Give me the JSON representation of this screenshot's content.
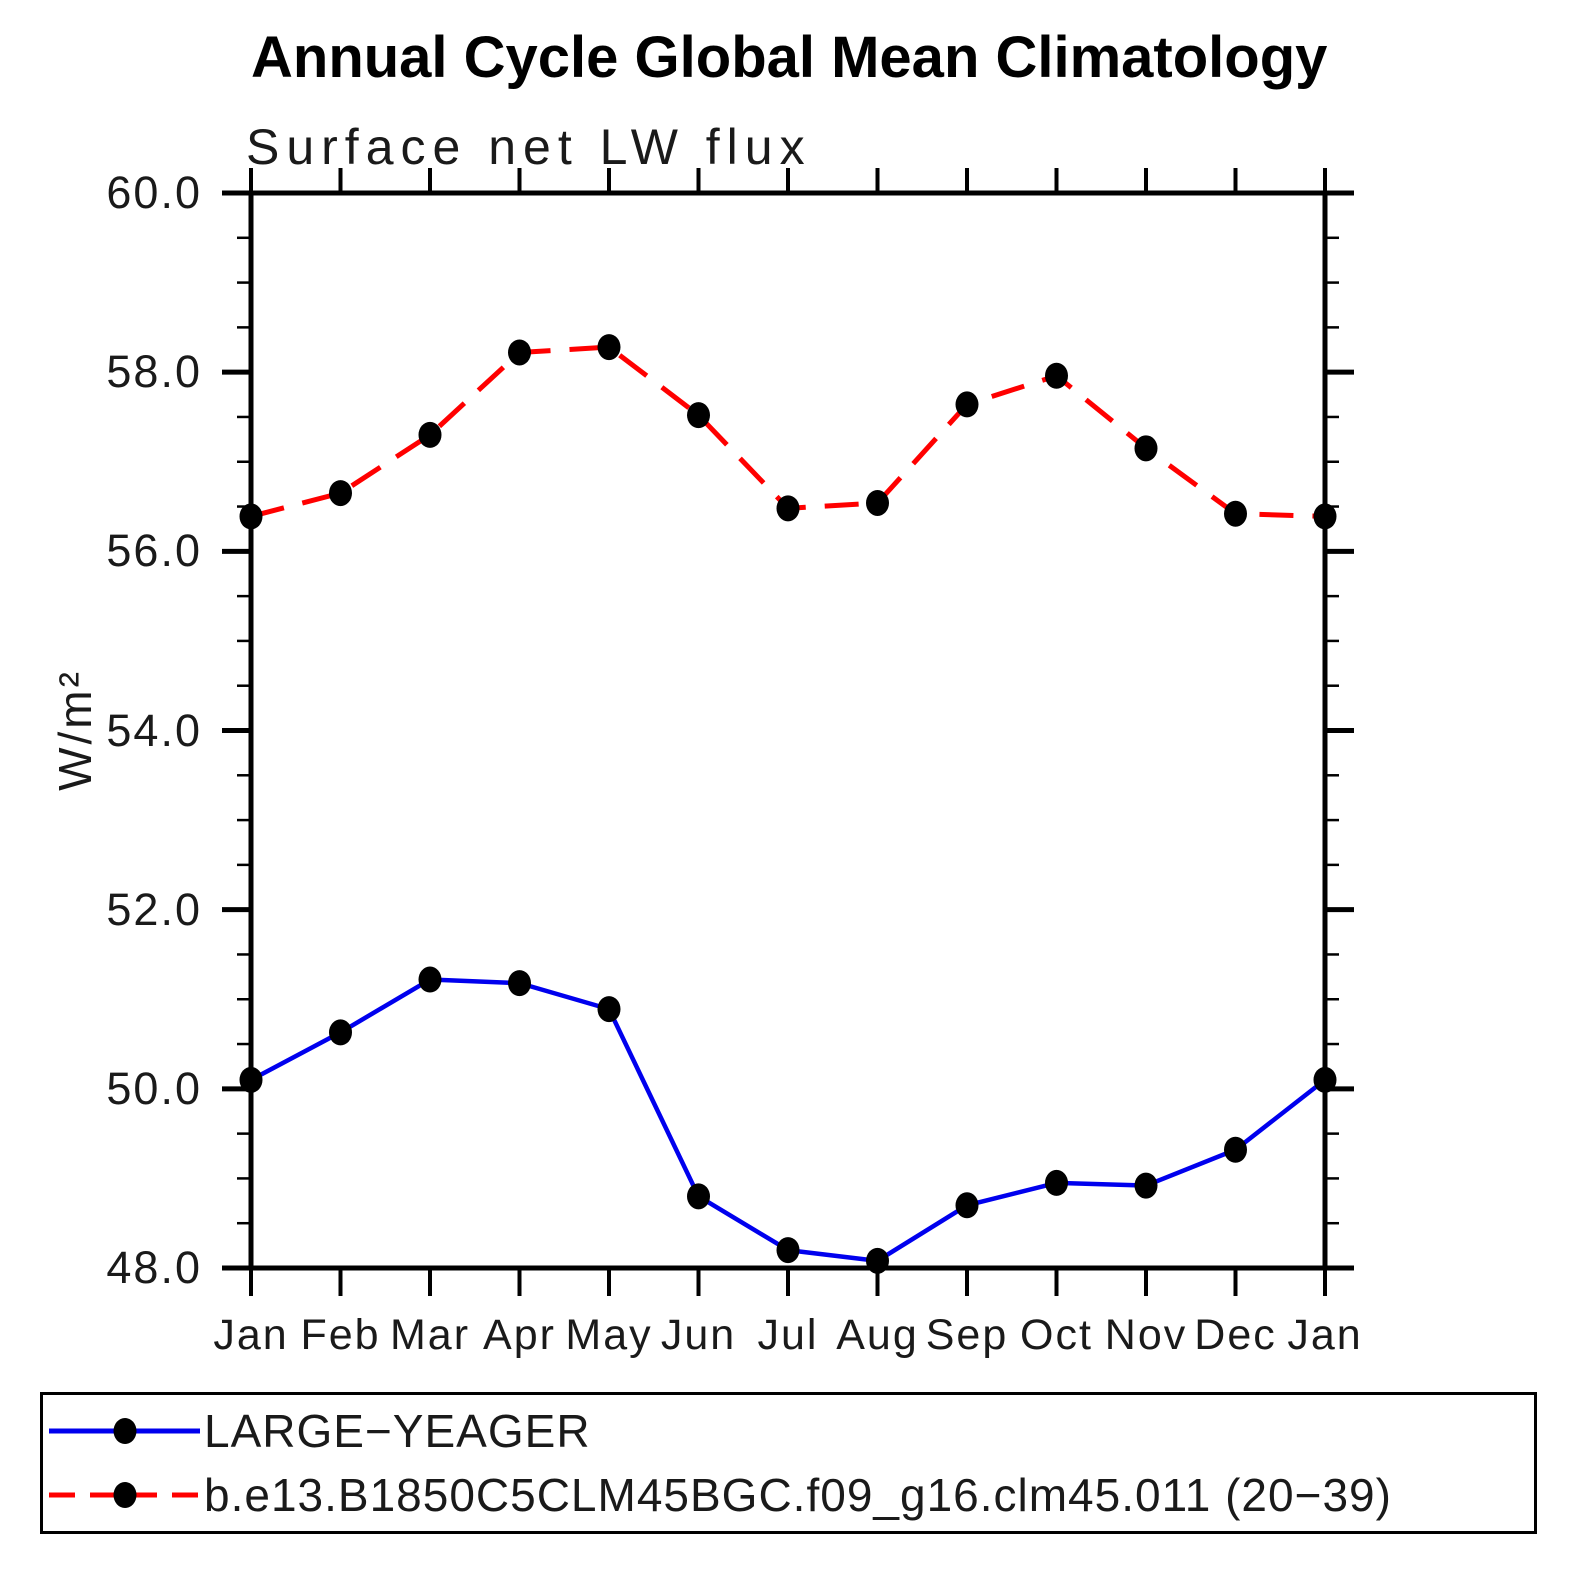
{
  "header": {
    "title": "Annual Cycle Global Mean Climatology"
  },
  "chart_data": {
    "type": "line",
    "title": "Annual Cycle Global Mean Climatology",
    "subtitle": "Surface net LW flux",
    "ylabel": "W/m²",
    "xlabel": "",
    "ylim": [
      48.0,
      60.0
    ],
    "ytick_major_step": 2.0,
    "ytick_minor_step": 0.5,
    "ytick_labels": [
      "48.0",
      "50.0",
      "52.0",
      "54.0",
      "56.0",
      "58.0",
      "60.0"
    ],
    "ytick_values": [
      48.0,
      50.0,
      52.0,
      54.0,
      56.0,
      58.0,
      60.0
    ],
    "categories": [
      "Jan",
      "Feb",
      "Mar",
      "Apr",
      "May",
      "Jun",
      "Jul",
      "Aug",
      "Sep",
      "Oct",
      "Nov",
      "Dec",
      "Jan"
    ],
    "grid": false,
    "legend_position": "bottom-left-box",
    "series": [
      {
        "name": "LARGE−YEAGER",
        "color": "#0000EE",
        "line_style": "solid",
        "marker": "filled-circle",
        "marker_color": "#000000",
        "values": [
          50.1,
          50.63,
          51.22,
          51.18,
          50.89,
          48.8,
          48.2,
          48.08,
          48.7,
          48.95,
          48.92,
          49.32,
          50.1
        ]
      },
      {
        "name": "b.e13.B1850C5CLM45BGC.f09_g16.clm45.011 (20−39)",
        "color": "#FF0000",
        "line_style": "dashed",
        "marker": "filled-circle",
        "marker_color": "#000000",
        "values": [
          56.39,
          56.65,
          57.3,
          58.22,
          58.28,
          57.52,
          56.48,
          56.54,
          57.64,
          57.96,
          57.15,
          56.42,
          56.39
        ]
      }
    ]
  }
}
